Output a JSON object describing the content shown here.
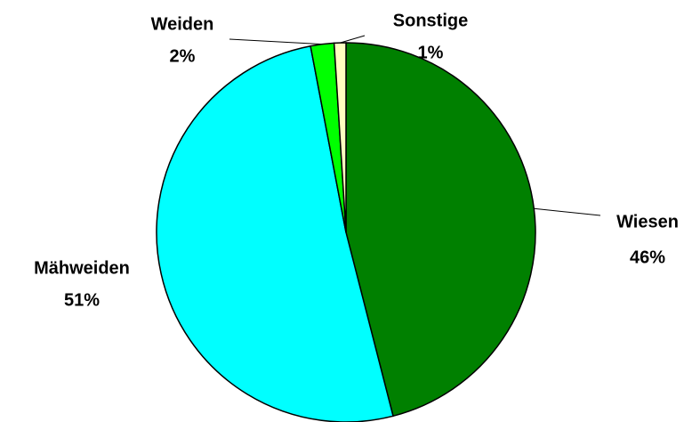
{
  "chart_data": {
    "type": "pie",
    "categories": [
      "Wiesen",
      "Mähweiden",
      "Weiden",
      "Sonstige"
    ],
    "values": [
      46,
      51,
      2,
      1
    ],
    "value_labels": [
      "46%",
      "51%",
      "2%",
      "1%"
    ],
    "colors": [
      "#008000",
      "#00ffff",
      "#00ff00",
      "#ffffc0"
    ]
  }
}
